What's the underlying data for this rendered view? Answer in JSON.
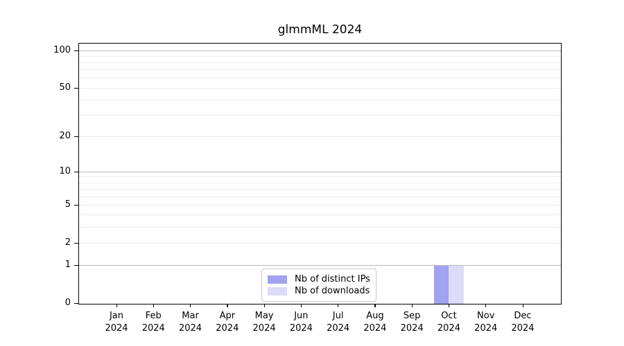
{
  "chart_data": {
    "type": "bar",
    "title": "glmmML 2024",
    "categories": [
      "Jan 2024",
      "Feb 2024",
      "Mar 2024",
      "Apr 2024",
      "May 2024",
      "Jun 2024",
      "Jul 2024",
      "Aug 2024",
      "Sep 2024",
      "Oct 2024",
      "Nov 2024",
      "Dec 2024"
    ],
    "series": [
      {
        "name": "Nb of distinct IPs",
        "color": "#a2a2f0",
        "values": [
          0,
          0,
          0,
          0,
          0,
          0,
          0,
          0,
          0,
          1,
          0,
          0
        ]
      },
      {
        "name": "Nb of downloads",
        "color": "#dcdcf8",
        "values": [
          0,
          0,
          0,
          0,
          0,
          0,
          0,
          0,
          0,
          1,
          0,
          0
        ]
      }
    ],
    "xlabel": "",
    "ylabel": "",
    "y_axis": {
      "scale": "log1p",
      "tick_values": [
        0,
        1,
        2,
        5,
        10,
        20,
        50,
        100
      ],
      "tick_labels": [
        "0",
        "1",
        "2",
        "5",
        "10",
        "20",
        "50",
        "100"
      ],
      "major_gridlines": [
        1,
        10,
        100
      ],
      "minor_gridlines": [
        2,
        3,
        4,
        5,
        6,
        7,
        8,
        9,
        20,
        30,
        40,
        50,
        60,
        70,
        80,
        90
      ],
      "ylim": [
        0,
        115
      ]
    },
    "grid": "horizontal",
    "legend_position": "bottom-center",
    "colors": {
      "axis": "#000000",
      "major_gridline": "#b9b9b9",
      "minor_gridline": "#ececec",
      "legend_border": "#c9c9c9",
      "background": "#ffffff"
    }
  }
}
